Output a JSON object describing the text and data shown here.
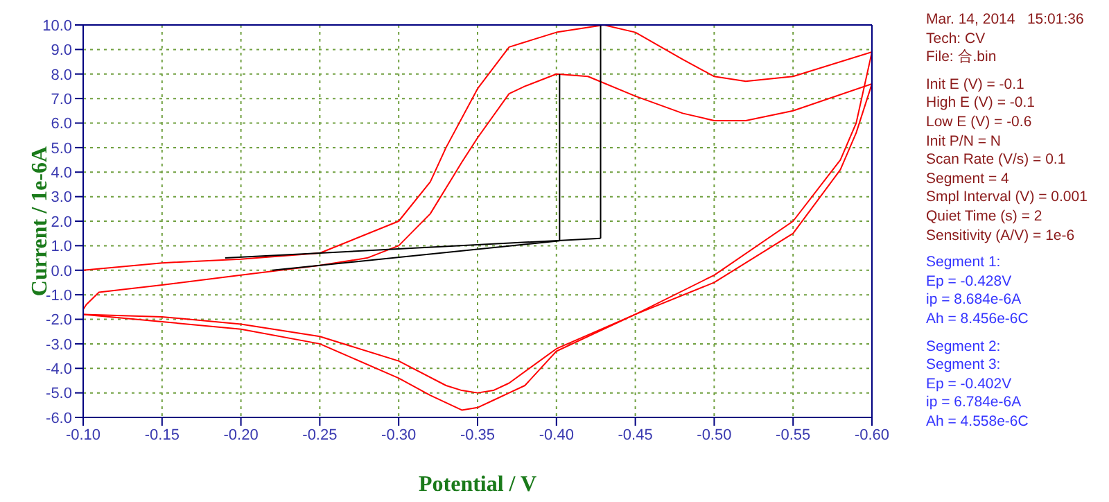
{
  "chart_data": {
    "type": "line",
    "xlabel": "Potential / V",
    "ylabel": "Current / 1e-6A",
    "xlim": [
      -0.1,
      -0.6
    ],
    "ylim": [
      -6,
      10
    ],
    "xticks": [
      {
        "value": -0.1,
        "label": "-0.10"
      },
      {
        "value": -0.15,
        "label": "-0.15"
      },
      {
        "value": -0.2,
        "label": "-0.20"
      },
      {
        "value": -0.25,
        "label": "-0.25"
      },
      {
        "value": -0.3,
        "label": "-0.30"
      },
      {
        "value": -0.35,
        "label": "-0.35"
      },
      {
        "value": -0.4,
        "label": "-0.40"
      },
      {
        "value": -0.45,
        "label": "-0.45"
      },
      {
        "value": -0.5,
        "label": "-0.50"
      },
      {
        "value": -0.55,
        "label": "-0.55"
      },
      {
        "value": -0.6,
        "label": "-0.60"
      }
    ],
    "yticks": [
      {
        "value": -6,
        "label": "-6.0"
      },
      {
        "value": -5,
        "label": "-5.0"
      },
      {
        "value": -4,
        "label": "-4.0"
      },
      {
        "value": -3,
        "label": "-3.0"
      },
      {
        "value": -2,
        "label": "-2.0"
      },
      {
        "value": -1,
        "label": "-1.0"
      },
      {
        "value": 0,
        "label": "0.0"
      },
      {
        "value": 1,
        "label": "1.0"
      },
      {
        "value": 2,
        "label": "2.0"
      },
      {
        "value": 3,
        "label": "3.0"
      },
      {
        "value": 4,
        "label": "4.0"
      },
      {
        "value": 5,
        "label": "5.0"
      },
      {
        "value": 6,
        "label": "6.0"
      },
      {
        "value": 7,
        "label": "7.0"
      },
      {
        "value": 8,
        "label": "8.0"
      },
      {
        "value": 9,
        "label": "9.0"
      },
      {
        "value": 10,
        "label": "10.0"
      }
    ],
    "grid": true,
    "marker": "none",
    "line_style": "solid",
    "series": [
      {
        "color": "#ff0000",
        "x": [
          -0.1,
          -0.15,
          -0.2,
          -0.25,
          -0.3,
          -0.32,
          -0.33,
          -0.35,
          -0.37,
          -0.38,
          -0.4,
          -0.43,
          -0.45,
          -0.48,
          -0.5,
          -0.52,
          -0.55,
          -0.6
        ],
        "values": [
          0.0,
          0.3,
          0.45,
          0.7,
          2.0,
          3.6,
          5.0,
          7.4,
          9.1,
          9.3,
          9.7,
          10.0,
          9.7,
          8.6,
          7.9,
          7.7,
          7.9,
          8.9
        ]
      },
      {
        "color": "#ff0000",
        "x": [
          -0.6,
          -0.59,
          -0.58,
          -0.55,
          -0.5,
          -0.45,
          -0.4,
          -0.37,
          -0.36,
          -0.35,
          -0.34,
          -0.33,
          -0.3,
          -0.25,
          -0.2,
          -0.15,
          -0.1
        ],
        "values": [
          8.9,
          6.0,
          4.5,
          2.0,
          -0.2,
          -1.8,
          -3.2,
          -4.6,
          -4.9,
          -5.0,
          -4.9,
          -4.7,
          -3.7,
          -2.7,
          -2.2,
          -1.9,
          -1.8
        ]
      },
      {
        "color": "#ff0000",
        "x": [
          -0.1,
          -0.102,
          -0.11,
          -0.15,
          -0.2,
          -0.25,
          -0.28,
          -0.3,
          -0.32,
          -0.34,
          -0.35,
          -0.37,
          -0.38,
          -0.4,
          -0.42,
          -0.45,
          -0.48,
          -0.5,
          -0.52,
          -0.55,
          -0.6
        ],
        "values": [
          -1.6,
          -1.4,
          -0.9,
          -0.6,
          -0.2,
          0.2,
          0.5,
          1.0,
          2.3,
          4.4,
          5.4,
          7.2,
          7.5,
          8.0,
          7.9,
          7.1,
          6.4,
          6.1,
          6.1,
          6.5,
          7.6
        ]
      },
      {
        "color": "#ff0000",
        "x": [
          -0.6,
          -0.59,
          -0.58,
          -0.55,
          -0.5,
          -0.45,
          -0.4,
          -0.38,
          -0.37,
          -0.36,
          -0.35,
          -0.34,
          -0.32,
          -0.3,
          -0.25,
          -0.2,
          -0.15,
          -0.1
        ],
        "values": [
          7.6,
          5.6,
          4.1,
          1.5,
          -0.5,
          -1.8,
          -3.3,
          -4.7,
          -5.0,
          -5.3,
          -5.6,
          -5.7,
          -5.1,
          -4.4,
          -3.0,
          -2.4,
          -2.1,
          -1.8
        ]
      },
      {
        "color": "#000000",
        "x": [
          -0.19,
          -0.428
        ],
        "values": [
          0.5,
          1.3
        ]
      },
      {
        "color": "#000000",
        "x": [
          -0.428,
          -0.428
        ],
        "values": [
          1.3,
          10.0
        ]
      },
      {
        "color": "#000000",
        "x": [
          -0.22,
          -0.402
        ],
        "values": [
          0.0,
          1.2
        ]
      },
      {
        "color": "#000000",
        "x": [
          -0.402,
          -0.402
        ],
        "values": [
          1.2,
          8.0
        ]
      }
    ],
    "annotations": [
      "Mar. 14, 2014   15:01:36",
      "Tech: CV",
      "File: 合.bin",
      "Init E (V) = -0.1",
      "High E (V) = -0.1",
      "Low E (V) = -0.6",
      "Init P/N = N",
      "Scan Rate (V/s) = 0.1",
      "Segment = 4",
      "Smpl Interval (V) = 0.001",
      "Quiet Time (s) = 2",
      "Sensitivity (A/V) = 1e-6",
      "Segment 1:",
      "Ep = -0.428V",
      "ip = 8.684e-6A",
      "Ah = 8.456e-6C",
      "Segment 2:",
      "Segment 3:",
      "Ep = -0.402V",
      "ip = 6.784e-6A",
      "Ah = 4.558e-6C"
    ]
  }
}
